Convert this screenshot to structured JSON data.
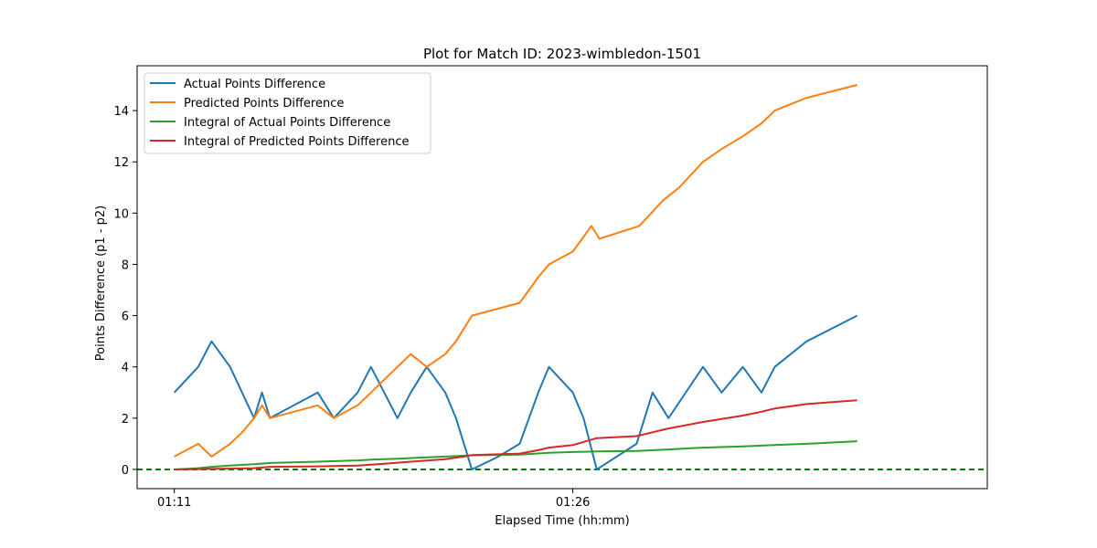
{
  "chart_data": {
    "type": "line",
    "title": "Plot for Match ID: 2023-wimbledon-1501",
    "xlabel": "Elapsed Time (hh:mm)",
    "ylabel": "Points Difference (p1 - p2)",
    "x_unit": "minutes",
    "xlim": [
      69.6,
      101.6
    ],
    "ylim": [
      -0.75,
      15.75
    ],
    "xticks": [
      {
        "value": 71,
        "label": "01:11"
      },
      {
        "value": 86,
        "label": "01:26"
      }
    ],
    "yticks": [
      0,
      2,
      4,
      6,
      8,
      10,
      12,
      14
    ],
    "legend_position": "upper-left",
    "grid": false,
    "baseline": {
      "y": 0,
      "color": "#008000",
      "style": "dashed"
    },
    "series": [
      {
        "name": "Actual Points Difference",
        "color": "#1f77b4",
        "points": [
          [
            71,
            3
          ],
          [
            71.9,
            4
          ],
          [
            72.4,
            5
          ],
          [
            73.1,
            4
          ],
          [
            74,
            2
          ],
          [
            74.3,
            3
          ],
          [
            74.6,
            2
          ],
          [
            76.4,
            3
          ],
          [
            77,
            2
          ],
          [
            77.9,
            3
          ],
          [
            78.4,
            4
          ],
          [
            78.9,
            3
          ],
          [
            79.4,
            2
          ],
          [
            79.9,
            3
          ],
          [
            80.5,
            4
          ],
          [
            81.2,
            3
          ],
          [
            81.6,
            2
          ],
          [
            81.9,
            1
          ],
          [
            82.2,
            0
          ],
          [
            83.2,
            0.5
          ],
          [
            84,
            1
          ],
          [
            84.7,
            3
          ],
          [
            85.1,
            4
          ],
          [
            86,
            3
          ],
          [
            86.4,
            2
          ],
          [
            86.9,
            0
          ],
          [
            88.4,
            1
          ],
          [
            89,
            3
          ],
          [
            89.6,
            2
          ],
          [
            90.9,
            4
          ],
          [
            91.6,
            3
          ],
          [
            92.4,
            4
          ],
          [
            93.1,
            3
          ],
          [
            93.6,
            4
          ],
          [
            94.8,
            5
          ],
          [
            96.7,
            6
          ]
        ]
      },
      {
        "name": "Predicted Points Difference",
        "color": "#ff7f0e",
        "points": [
          [
            71,
            0.5
          ],
          [
            71.9,
            1
          ],
          [
            72.4,
            0.5
          ],
          [
            73.1,
            1
          ],
          [
            73.6,
            1.5
          ],
          [
            74,
            2
          ],
          [
            74.3,
            2.5
          ],
          [
            74.6,
            2
          ],
          [
            76.4,
            2.5
          ],
          [
            77,
            2
          ],
          [
            77.9,
            2.5
          ],
          [
            78.4,
            3
          ],
          [
            78.9,
            3.5
          ],
          [
            79.4,
            4
          ],
          [
            79.9,
            4.5
          ],
          [
            80.5,
            4
          ],
          [
            81.2,
            4.5
          ],
          [
            81.6,
            5
          ],
          [
            81.9,
            5.5
          ],
          [
            82.2,
            6
          ],
          [
            84,
            6.5
          ],
          [
            84.7,
            7.5
          ],
          [
            85.1,
            8
          ],
          [
            86,
            8.5
          ],
          [
            86.7,
            9.5
          ],
          [
            87,
            9
          ],
          [
            88.5,
            9.5
          ],
          [
            89.4,
            10.5
          ],
          [
            90,
            11
          ],
          [
            90.9,
            12
          ],
          [
            91.6,
            12.5
          ],
          [
            92.4,
            13
          ],
          [
            93.1,
            13.5
          ],
          [
            93.6,
            14
          ],
          [
            94.8,
            14.5
          ],
          [
            96.7,
            15
          ]
        ]
      },
      {
        "name": "Integral of Actual Points Difference",
        "color": "#2ca02c",
        "points": [
          [
            71,
            0
          ],
          [
            71.9,
            0.05
          ],
          [
            72.4,
            0.1
          ],
          [
            73.1,
            0.15
          ],
          [
            74,
            0.2
          ],
          [
            74.6,
            0.25
          ],
          [
            76.4,
            0.3
          ],
          [
            77.9,
            0.35
          ],
          [
            78.4,
            0.38
          ],
          [
            79.4,
            0.42
          ],
          [
            80.5,
            0.47
          ],
          [
            81.6,
            0.52
          ],
          [
            82.2,
            0.55
          ],
          [
            84,
            0.58
          ],
          [
            85.1,
            0.65
          ],
          [
            86,
            0.68
          ],
          [
            86.9,
            0.7
          ],
          [
            88.4,
            0.72
          ],
          [
            89.6,
            0.78
          ],
          [
            90.9,
            0.85
          ],
          [
            92.4,
            0.9
          ],
          [
            93.6,
            0.95
          ],
          [
            94.8,
            1.0
          ],
          [
            96.7,
            1.1
          ]
        ]
      },
      {
        "name": "Integral of Predicted Points Difference",
        "color": "#d62728",
        "points": [
          [
            71,
            0
          ],
          [
            72.4,
            0.02
          ],
          [
            74,
            0.05
          ],
          [
            74.6,
            0.1
          ],
          [
            76.4,
            0.12
          ],
          [
            77.9,
            0.15
          ],
          [
            78.9,
            0.22
          ],
          [
            79.9,
            0.3
          ],
          [
            81.2,
            0.4
          ],
          [
            81.9,
            0.5
          ],
          [
            82.2,
            0.56
          ],
          [
            84,
            0.62
          ],
          [
            84.7,
            0.75
          ],
          [
            85.1,
            0.85
          ],
          [
            86,
            0.95
          ],
          [
            86.9,
            1.22
          ],
          [
            88.4,
            1.3
          ],
          [
            89,
            1.45
          ],
          [
            89.6,
            1.6
          ],
          [
            90.9,
            1.85
          ],
          [
            92.4,
            2.1
          ],
          [
            93.1,
            2.25
          ],
          [
            93.6,
            2.38
          ],
          [
            94.8,
            2.55
          ],
          [
            96.7,
            2.7
          ]
        ]
      }
    ]
  }
}
